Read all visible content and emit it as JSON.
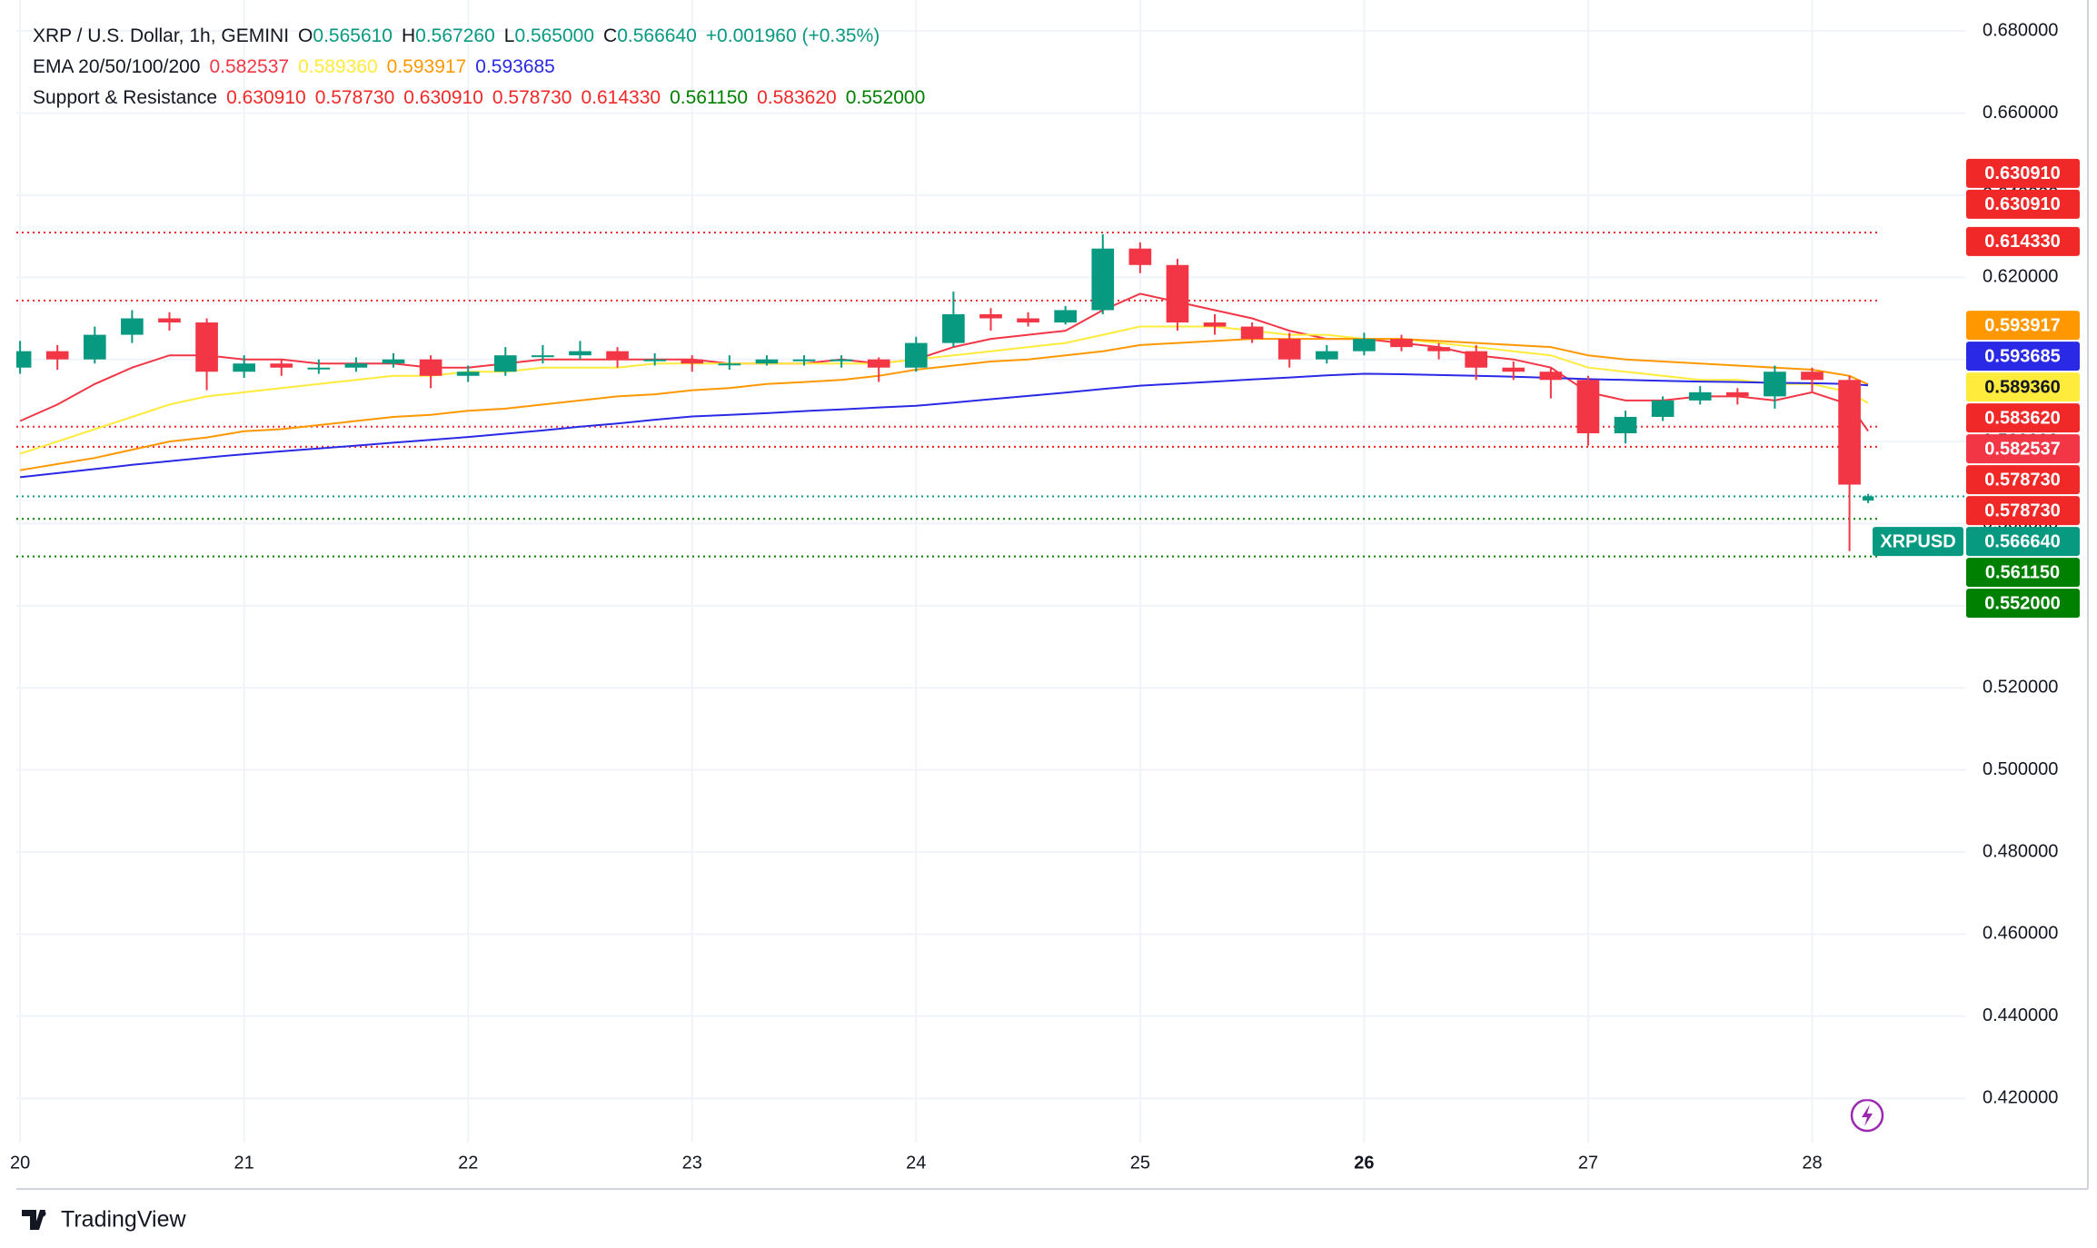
{
  "chart_data": {
    "type": "candlestick",
    "header": {
      "symbol": "XRP / U.S. Dollar, 1h, GEMINI",
      "fields": [
        {
          "key": "O",
          "label": "0.565610"
        },
        {
          "key": "H",
          "label": "0.567260"
        },
        {
          "key": "L",
          "label": "0.565000"
        },
        {
          "key": "C",
          "label": "0.566640"
        }
      ],
      "change": "+0.001960 (+0.35%)"
    },
    "ticker": "XRPUSD",
    "up_color": "#089981",
    "down_color": "#f23645",
    "x": [
      0,
      4,
      8,
      12,
      16,
      20,
      24,
      28,
      32,
      36,
      40,
      44,
      48,
      52,
      56,
      60,
      64,
      68,
      72,
      76,
      80,
      84,
      88,
      92,
      96,
      100,
      104,
      108,
      112,
      116,
      120,
      124,
      128,
      132,
      136,
      140,
      144,
      148,
      152,
      156,
      160,
      164,
      168,
      172,
      176,
      180,
      184,
      188,
      192,
      196,
      198
    ],
    "ohlc": [
      [
        0.598,
        0.6045,
        0.5965,
        0.602
      ],
      [
        0.602,
        0.6035,
        0.5975,
        0.6
      ],
      [
        0.6,
        0.608,
        0.599,
        0.606
      ],
      [
        0.606,
        0.612,
        0.604,
        0.61
      ],
      [
        0.61,
        0.6115,
        0.607,
        0.609
      ],
      [
        0.609,
        0.61,
        0.5925,
        0.597
      ],
      [
        0.597,
        0.601,
        0.5955,
        0.599
      ],
      [
        0.599,
        0.6,
        0.596,
        0.598
      ],
      [
        0.598,
        0.6,
        0.5965,
        0.598
      ],
      [
        0.598,
        0.6005,
        0.597,
        0.599
      ],
      [
        0.599,
        0.6015,
        0.598,
        0.6
      ],
      [
        0.6,
        0.601,
        0.593,
        0.596
      ],
      [
        0.596,
        0.5985,
        0.5945,
        0.597
      ],
      [
        0.597,
        0.603,
        0.596,
        0.601
      ],
      [
        0.601,
        0.6035,
        0.599,
        0.601
      ],
      [
        0.601,
        0.6045,
        0.6,
        0.602
      ],
      [
        0.602,
        0.603,
        0.598,
        0.6
      ],
      [
        0.6,
        0.6015,
        0.5985,
        0.6
      ],
      [
        0.6,
        0.601,
        0.597,
        0.599
      ],
      [
        0.599,
        0.601,
        0.5975,
        0.599
      ],
      [
        0.599,
        0.601,
        0.5985,
        0.6
      ],
      [
        0.6,
        0.601,
        0.5985,
        0.6
      ],
      [
        0.6,
        0.601,
        0.598,
        0.6
      ],
      [
        0.6,
        0.6005,
        0.5945,
        0.598
      ],
      [
        0.598,
        0.6055,
        0.597,
        0.604
      ],
      [
        0.604,
        0.6165,
        0.603,
        0.611
      ],
      [
        0.611,
        0.6125,
        0.607,
        0.61
      ],
      [
        0.61,
        0.6115,
        0.608,
        0.609
      ],
      [
        0.609,
        0.613,
        0.6085,
        0.612
      ],
      [
        0.612,
        0.6305,
        0.611,
        0.627
      ],
      [
        0.627,
        0.6285,
        0.621,
        0.623
      ],
      [
        0.623,
        0.6245,
        0.607,
        0.609
      ],
      [
        0.609,
        0.611,
        0.606,
        0.608
      ],
      [
        0.608,
        0.609,
        0.604,
        0.605
      ],
      [
        0.605,
        0.6065,
        0.598,
        0.6
      ],
      [
        0.6,
        0.6035,
        0.599,
        0.602
      ],
      [
        0.602,
        0.6065,
        0.601,
        0.605
      ],
      [
        0.605,
        0.606,
        0.602,
        0.603
      ],
      [
        0.603,
        0.604,
        0.6,
        0.602
      ],
      [
        0.602,
        0.6035,
        0.595,
        0.598
      ],
      [
        0.598,
        0.5995,
        0.595,
        0.597
      ],
      [
        0.597,
        0.598,
        0.5905,
        0.595
      ],
      [
        0.595,
        0.596,
        0.579,
        0.582
      ],
      [
        0.582,
        0.5875,
        0.5795,
        0.586
      ],
      [
        0.586,
        0.591,
        0.585,
        0.59
      ],
      [
        0.59,
        0.5935,
        0.589,
        0.592
      ],
      [
        0.592,
        0.593,
        0.589,
        0.591
      ],
      [
        0.591,
        0.5985,
        0.588,
        0.597
      ],
      [
        0.597,
        0.598,
        0.592,
        0.595
      ],
      [
        0.595,
        0.596,
        0.5533,
        0.5695
      ],
      [
        0.56561,
        0.56726,
        0.565,
        0.56664
      ]
    ],
    "ema": {
      "label": "EMA 20/50/100/200",
      "series": [
        {
          "color": "#f23645",
          "value_label": "0.582537",
          "values": [
            0.585,
            0.589,
            0.594,
            0.598,
            0.601,
            0.601,
            0.6,
            0.6,
            0.599,
            0.599,
            0.599,
            0.598,
            0.598,
            0.599,
            0.6,
            0.6,
            0.6,
            0.6,
            0.6,
            0.599,
            0.599,
            0.599,
            0.6,
            0.599,
            0.6,
            0.603,
            0.605,
            0.606,
            0.607,
            0.612,
            0.616,
            0.614,
            0.612,
            0.61,
            0.607,
            0.605,
            0.605,
            0.604,
            0.603,
            0.601,
            0.6,
            0.598,
            0.592,
            0.59,
            0.59,
            0.591,
            0.591,
            0.59,
            0.592,
            0.589,
            0.582537
          ]
        },
        {
          "color": "#ffeb3b",
          "value_label": "0.589360",
          "values": [
            0.577,
            0.58,
            0.583,
            0.586,
            0.589,
            0.591,
            0.592,
            0.593,
            0.594,
            0.595,
            0.596,
            0.596,
            0.597,
            0.597,
            0.598,
            0.598,
            0.598,
            0.599,
            0.599,
            0.599,
            0.599,
            0.599,
            0.599,
            0.599,
            0.6,
            0.601,
            0.602,
            0.603,
            0.604,
            0.606,
            0.608,
            0.608,
            0.608,
            0.607,
            0.606,
            0.606,
            0.605,
            0.605,
            0.604,
            0.603,
            0.602,
            0.601,
            0.598,
            0.597,
            0.596,
            0.595,
            0.595,
            0.594,
            0.594,
            0.592,
            0.58936
          ]
        },
        {
          "color": "#ff9800",
          "value_label": "0.593917",
          "values": [
            0.573,
            0.5745,
            0.576,
            0.578,
            0.58,
            0.581,
            0.5825,
            0.583,
            0.584,
            0.585,
            0.586,
            0.5865,
            0.5875,
            0.588,
            0.589,
            0.59,
            0.591,
            0.5915,
            0.5925,
            0.593,
            0.594,
            0.5945,
            0.595,
            0.596,
            0.5975,
            0.5985,
            0.5995,
            0.6,
            0.601,
            0.602,
            0.6035,
            0.604,
            0.6045,
            0.605,
            0.605,
            0.605,
            0.605,
            0.605,
            0.6045,
            0.604,
            0.6035,
            0.603,
            0.601,
            0.6,
            0.5995,
            0.599,
            0.5985,
            0.598,
            0.5975,
            0.596,
            0.593917
          ]
        },
        {
          "color": "#2929e6",
          "value_label": "0.593685",
          "values": [
            0.5713,
            0.5723,
            0.5733,
            0.5743,
            0.5752,
            0.5761,
            0.5769,
            0.5776,
            0.5783,
            0.579,
            0.5797,
            0.5804,
            0.5811,
            0.5819,
            0.5827,
            0.5836,
            0.5844,
            0.5853,
            0.5861,
            0.5865,
            0.5869,
            0.5874,
            0.5878,
            0.5883,
            0.5887,
            0.5895,
            0.5903,
            0.5911,
            0.5919,
            0.5928,
            0.5936,
            0.5941,
            0.5946,
            0.5951,
            0.5956,
            0.5961,
            0.5965,
            0.5964,
            0.5962,
            0.596,
            0.5958,
            0.5955,
            0.5952,
            0.595,
            0.5948,
            0.5946,
            0.5945,
            0.5943,
            0.5942,
            0.594,
            0.593685
          ]
        }
      ]
    },
    "support_resistance": {
      "label": "Support & Resistance",
      "levels": [
        {
          "value": 0.63091,
          "label": "0.630910",
          "color": "#f02828"
        },
        {
          "value": 0.57873,
          "label": "0.578730",
          "color": "#f02828"
        },
        {
          "value": 0.63091,
          "label": "0.630910",
          "color": "#f02828"
        },
        {
          "value": 0.57873,
          "label": "0.578730",
          "color": "#f02828"
        },
        {
          "value": 0.61433,
          "label": "0.614330",
          "color": "#f02828"
        },
        {
          "value": 0.56115,
          "label": "0.561150",
          "color": "#008000"
        },
        {
          "value": 0.58362,
          "label": "0.583620",
          "color": "#f02828"
        },
        {
          "value": 0.552,
          "label": "0.552000",
          "color": "#008000"
        }
      ]
    },
    "xlim": [
      -0.4,
      208.5
    ],
    "ylim": [
      0.4092,
      0.6849
    ],
    "xticks": [
      {
        "value": 0,
        "label": "20"
      },
      {
        "value": 24,
        "label": "21"
      },
      {
        "value": 48,
        "label": "22"
      },
      {
        "value": 72,
        "label": "23"
      },
      {
        "value": 96,
        "label": "24"
      },
      {
        "value": 120,
        "label": "25"
      },
      {
        "value": 144,
        "label": "26",
        "bold": true
      },
      {
        "value": 168,
        "label": "27"
      },
      {
        "value": 192,
        "label": "28"
      }
    ],
    "yticks": [
      {
        "value": 0.42,
        "label": "0.420000"
      },
      {
        "value": 0.44,
        "label": "0.440000"
      },
      {
        "value": 0.46,
        "label": "0.460000"
      },
      {
        "value": 0.48,
        "label": "0.480000"
      },
      {
        "value": 0.5,
        "label": "0.500000"
      },
      {
        "value": 0.52,
        "label": "0.520000"
      },
      {
        "value": 0.54,
        "label": "0.540000"
      },
      {
        "value": 0.56,
        "label": "0.560000"
      },
      {
        "value": 0.58,
        "label": "0.580000"
      },
      {
        "value": 0.6,
        "label": "0.600000"
      },
      {
        "value": 0.62,
        "label": "0.620000"
      },
      {
        "value": 0.64,
        "label": "0.640000"
      },
      {
        "value": 0.66,
        "label": "0.660000"
      },
      {
        "value": 0.68,
        "label": "0.680000"
      }
    ],
    "grid": true,
    "branding": "TradingView"
  }
}
